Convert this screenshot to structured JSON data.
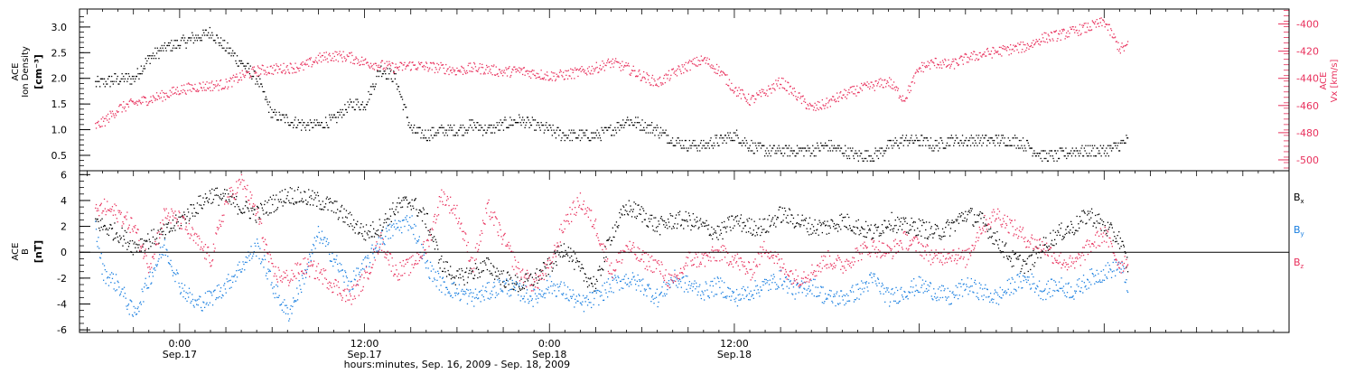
{
  "chart_data": [
    {
      "type": "scatter",
      "panel": "top",
      "ylabel_lines": [
        "ACE",
        "Ion Density"
      ],
      "yunit": "[cm⁻³]",
      "ylim": [
        0.2,
        3.35
      ],
      "yticks": [
        "0.5",
        "1.0",
        "1.5",
        "2.0",
        "2.5",
        "3.0"
      ],
      "yticks_values": [
        0.5,
        1.0,
        1.5,
        2.0,
        2.5,
        3.0
      ],
      "right_axis": {
        "label_lines": [
          "ACE",
          "Vx"
        ],
        "unit": "[km/s]",
        "ylim": [
          -508,
          -389
        ],
        "yticks": [
          "-400",
          "-420",
          "-440",
          "-460",
          "-480",
          "-500"
        ],
        "yticks_values": [
          -400,
          -420,
          -440,
          -460,
          -480,
          -500
        ]
      },
      "series": [
        {
          "color": "#000000",
          "axis": "left",
          "x": [
            -5.5,
            -4,
            -3,
            -2,
            -1,
            0,
            1,
            2,
            3,
            4,
            5,
            6,
            7,
            8,
            9,
            10,
            11,
            12,
            13,
            14,
            15,
            16,
            17,
            18,
            19,
            20,
            21,
            22,
            23,
            24,
            25,
            26,
            27,
            28,
            29,
            30,
            31,
            32,
            33,
            34,
            35,
            36,
            37,
            38,
            39,
            40,
            41,
            42,
            43,
            44,
            45,
            46,
            47,
            48,
            49,
            50,
            51,
            52,
            53,
            54,
            55,
            56,
            57,
            58,
            59,
            60,
            61,
            61.5
          ],
          "values": [
            1.9,
            2.0,
            2.0,
            2.4,
            2.6,
            2.7,
            2.8,
            2.9,
            2.6,
            2.3,
            2.0,
            1.3,
            1.2,
            1.1,
            1.1,
            1.2,
            1.5,
            1.5,
            2.2,
            2.0,
            1.0,
            0.9,
            1.0,
            1.0,
            1.1,
            1.0,
            1.1,
            1.2,
            1.1,
            1.0,
            0.9,
            0.9,
            0.9,
            1.0,
            1.2,
            1.1,
            1.0,
            0.8,
            0.7,
            0.7,
            0.8,
            0.9,
            0.7,
            0.6,
            0.6,
            0.6,
            0.6,
            0.7,
            0.6,
            0.5,
            0.5,
            0.7,
            0.8,
            0.8,
            0.7,
            0.8,
            0.8,
            0.8,
            0.8,
            0.8,
            0.7,
            0.5,
            0.5,
            0.6,
            0.6,
            0.6,
            0.7,
            0.8
          ]
        },
        {
          "color": "#e8305c",
          "axis": "right",
          "x": [
            -5.5,
            -5,
            -4,
            -3,
            -2,
            -1,
            0,
            1,
            2,
            3,
            4,
            5,
            6,
            7,
            8,
            9,
            10,
            11,
            12,
            13,
            14,
            15,
            16,
            17,
            18,
            19,
            20,
            21,
            22,
            23,
            24,
            25,
            26,
            27,
            28,
            29,
            30,
            31,
            32,
            33,
            34,
            35,
            36,
            37,
            38,
            39,
            40,
            41,
            42,
            43,
            44,
            45,
            46,
            47,
            48,
            49,
            50,
            51,
            52,
            53,
            54,
            55,
            56,
            57,
            58,
            59,
            60,
            61,
            61.5
          ],
          "values": [
            -475,
            -472,
            -462,
            -458,
            -455,
            -452,
            -448,
            -446,
            -445,
            -444,
            -438,
            -434,
            -433,
            -432,
            -431,
            -425,
            -423,
            -424,
            -428,
            -430,
            -432,
            -430,
            -431,
            -432,
            -434,
            -432,
            -433,
            -435,
            -434,
            -436,
            -438,
            -437,
            -435,
            -432,
            -428,
            -432,
            -438,
            -443,
            -436,
            -430,
            -426,
            -434,
            -448,
            -456,
            -450,
            -442,
            -452,
            -462,
            -458,
            -452,
            -448,
            -445,
            -442,
            -455,
            -432,
            -428,
            -430,
            -425,
            -422,
            -420,
            -418,
            -416,
            -410,
            -408,
            -405,
            -402,
            -398,
            -418,
            -416
          ]
        }
      ]
    },
    {
      "type": "scatter",
      "panel": "bottom",
      "ylabel_lines": [
        "ACE",
        "B"
      ],
      "yunit": "[nT]",
      "ylim": [
        -6.2,
        6.3
      ],
      "yticks": [
        "6",
        "4",
        "2",
        "0",
        "-2",
        "-4",
        "-6"
      ],
      "yticks_values": [
        6,
        4,
        2,
        0,
        -2,
        -4,
        -6
      ],
      "zero_line": true,
      "series": [
        {
          "name": "Bx",
          "color": "#000000",
          "x": [
            -5.5,
            -5,
            -4,
            -3,
            -2,
            -1,
            0,
            1,
            2,
            3,
            4,
            5,
            6,
            7,
            8,
            9,
            10,
            11,
            12,
            13,
            14,
            15,
            16,
            17,
            18,
            19,
            20,
            21,
            22,
            23,
            24,
            25,
            26,
            27,
            28,
            29,
            30,
            31,
            32,
            33,
            34,
            35,
            36,
            37,
            38,
            39,
            40,
            41,
            42,
            43,
            44,
            45,
            46,
            47,
            48,
            49,
            50,
            51,
            52,
            53,
            54,
            55,
            56,
            57,
            58,
            59,
            60,
            61,
            61.5
          ],
          "values": [
            2.5,
            2.0,
            1.5,
            0.5,
            1.0,
            1.5,
            2.5,
            3.5,
            4.5,
            4.2,
            3.5,
            3.0,
            3.8,
            4.5,
            4.3,
            4.0,
            3.5,
            2.5,
            1.5,
            2.0,
            3.5,
            4.0,
            2.5,
            -1.0,
            -2.0,
            -1.5,
            -1.0,
            -2.0,
            -2.5,
            -2.0,
            -1.0,
            0.5,
            -1.5,
            -2.5,
            1.5,
            3.5,
            3.0,
            2.0,
            2.5,
            2.5,
            2.0,
            1.5,
            2.5,
            2.0,
            2.0,
            3.0,
            2.5,
            2.0,
            2.0,
            2.5,
            2.0,
            1.5,
            2.5,
            2.0,
            2.0,
            1.5,
            2.0,
            3.0,
            2.5,
            1.0,
            -0.5,
            -1.0,
            0.5,
            1.5,
            2.0,
            3.0,
            2.0,
            1.0,
            -1.0
          ]
        },
        {
          "name": "By",
          "color": "#1a7fe0",
          "x": [
            -5.5,
            -5,
            -4,
            -3,
            -2,
            -1,
            0,
            1,
            2,
            3,
            4,
            5,
            6,
            7,
            8,
            9,
            10,
            11,
            12,
            13,
            14,
            15,
            16,
            17,
            18,
            19,
            20,
            21,
            22,
            23,
            24,
            25,
            26,
            27,
            28,
            29,
            30,
            31,
            32,
            33,
            34,
            35,
            36,
            37,
            38,
            39,
            40,
            41,
            42,
            43,
            44,
            45,
            46,
            47,
            48,
            49,
            50,
            51,
            52,
            53,
            54,
            55,
            56,
            57,
            58,
            59,
            60,
            61,
            61.5
          ],
          "values": [
            2.0,
            -1.5,
            -2.5,
            -4.8,
            -2.0,
            0.5,
            -2.5,
            -4.0,
            -3.5,
            -2.5,
            -1.0,
            0.5,
            -2.5,
            -4.8,
            -2.0,
            1.5,
            -0.5,
            -2.5,
            -1.0,
            1.0,
            2.0,
            2.5,
            -1.0,
            -2.5,
            -3.0,
            -3.5,
            -3.0,
            -2.5,
            -3.0,
            -3.5,
            -2.5,
            -3.0,
            -4.0,
            -3.5,
            -2.5,
            -2.0,
            -2.5,
            -3.5,
            -2.0,
            -2.5,
            -3.0,
            -2.5,
            -3.5,
            -3.0,
            -2.5,
            -2.0,
            -3.0,
            -2.5,
            -3.5,
            -3.5,
            -3.0,
            -2.0,
            -3.5,
            -3.0,
            -2.5,
            -3.0,
            -3.5,
            -2.5,
            -3.0,
            -3.5,
            -2.5,
            -2.0,
            -3.0,
            -2.5,
            -3.0,
            -2.0,
            -1.5,
            -1.0,
            -2.5
          ]
        },
        {
          "name": "Bz",
          "color": "#e8305c",
          "x": [
            -5.5,
            -5,
            -4,
            -3,
            -2,
            -1,
            0,
            1,
            2,
            3,
            4,
            5,
            6,
            7,
            8,
            9,
            10,
            11,
            12,
            13,
            14,
            15,
            16,
            17,
            18,
            19,
            20,
            21,
            22,
            23,
            24,
            25,
            26,
            27,
            28,
            29,
            30,
            31,
            32,
            33,
            34,
            35,
            36,
            37,
            38,
            39,
            40,
            41,
            42,
            43,
            44,
            45,
            46,
            47,
            48,
            49,
            50,
            51,
            52,
            53,
            54,
            55,
            56,
            57,
            58,
            59,
            60,
            61,
            61.5
          ],
          "values": [
            3.0,
            3.5,
            3.0,
            2.0,
            -1.0,
            3.0,
            2.5,
            1.0,
            -0.5,
            4.0,
            5.5,
            3.0,
            -1.5,
            -2.0,
            -1.0,
            -1.5,
            -2.5,
            -3.5,
            -2.0,
            1.0,
            -1.5,
            -1.0,
            0.5,
            4.5,
            3.0,
            -1.0,
            3.5,
            1.0,
            -1.5,
            -2.5,
            -1.0,
            2.5,
            4.0,
            2.0,
            -1.5,
            0.5,
            -0.5,
            -1.0,
            -2.5,
            -0.5,
            -0.5,
            0.0,
            -0.5,
            -1.5,
            0.5,
            -1.0,
            -2.0,
            -1.5,
            -0.5,
            -1.0,
            0.0,
            0.5,
            0.0,
            1.0,
            0.5,
            -0.5,
            0.0,
            -0.5,
            2.0,
            3.0,
            2.0,
            1.0,
            0.5,
            -0.5,
            -1.0,
            0.5,
            1.5,
            -1.0,
            -0.5
          ]
        }
      ],
      "legend": [
        {
          "label": "B",
          "sub": "x",
          "color": "#000000"
        },
        {
          "label": "B",
          "sub": "y",
          "color": "#1a7fe0"
        },
        {
          "label": "B",
          "sub": "z",
          "color": "#e8305c"
        }
      ]
    }
  ],
  "x_axis": {
    "xlim": [
      -6.5,
      72
    ],
    "ticks": [
      {
        "x": 0,
        "line1": "0:00",
        "line2": "Sep.17"
      },
      {
        "x": 12,
        "line1": "12:00",
        "line2": "Sep.17"
      },
      {
        "x": 24,
        "line1": "0:00",
        "line2": "Sep.18"
      },
      {
        "x": 36,
        "line1": "12:00",
        "line2": "Sep.18"
      }
    ],
    "xlabel": "hours:minutes, Sep. 16, 2009 - Sep. 18, 2009"
  }
}
